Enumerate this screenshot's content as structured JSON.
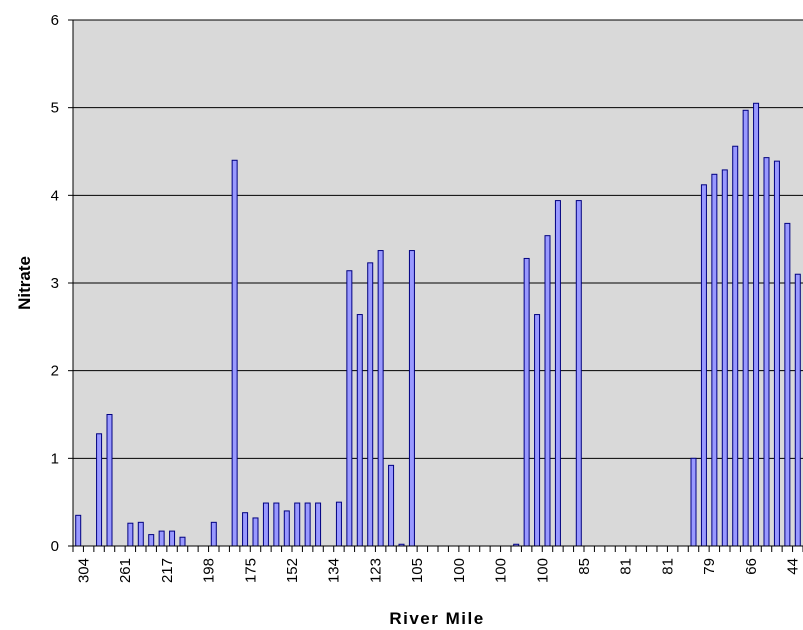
{
  "chart_data": {
    "type": "bar",
    "title": "",
    "xlabel": "River Mile",
    "ylabel": "Nitrate",
    "ylim": [
      0,
      6
    ],
    "yticks": [
      0,
      1,
      2,
      3,
      4,
      5,
      6
    ],
    "grid": true,
    "legend": "none",
    "x_tick_labels": [
      "304",
      "261",
      "217",
      "198",
      "175",
      "152",
      "134",
      "123",
      "105",
      "100",
      "100",
      "100",
      "85",
      "81",
      "81",
      "79",
      "66",
      "44"
    ],
    "values": [
      0.35,
      0,
      1.28,
      1.5,
      0,
      0.26,
      0.27,
      0.13,
      0.17,
      0.17,
      0.1,
      0,
      0,
      0.27,
      0,
      4.4,
      0.38,
      0.32,
      0.49,
      0.49,
      0.4,
      0.49,
      0.49,
      0.49,
      0,
      0.5,
      3.14,
      2.64,
      3.23,
      3.37,
      0.92,
      0.02,
      3.37,
      0,
      0,
      0,
      0,
      0,
      0,
      0,
      0,
      0,
      0.02,
      3.28,
      2.64,
      3.54,
      3.94,
      0,
      3.94,
      0,
      0,
      0,
      0,
      0,
      0,
      0,
      0,
      0,
      0,
      1.0,
      4.12,
      4.24,
      4.29,
      4.56,
      4.97,
      5.05,
      4.43,
      4.39,
      3.68,
      3.1
    ],
    "colors": {
      "bar_fill": "#9999ff",
      "bar_stroke": "#000080",
      "plot_bg": "#d9d9d9",
      "grid": "#000000"
    }
  }
}
